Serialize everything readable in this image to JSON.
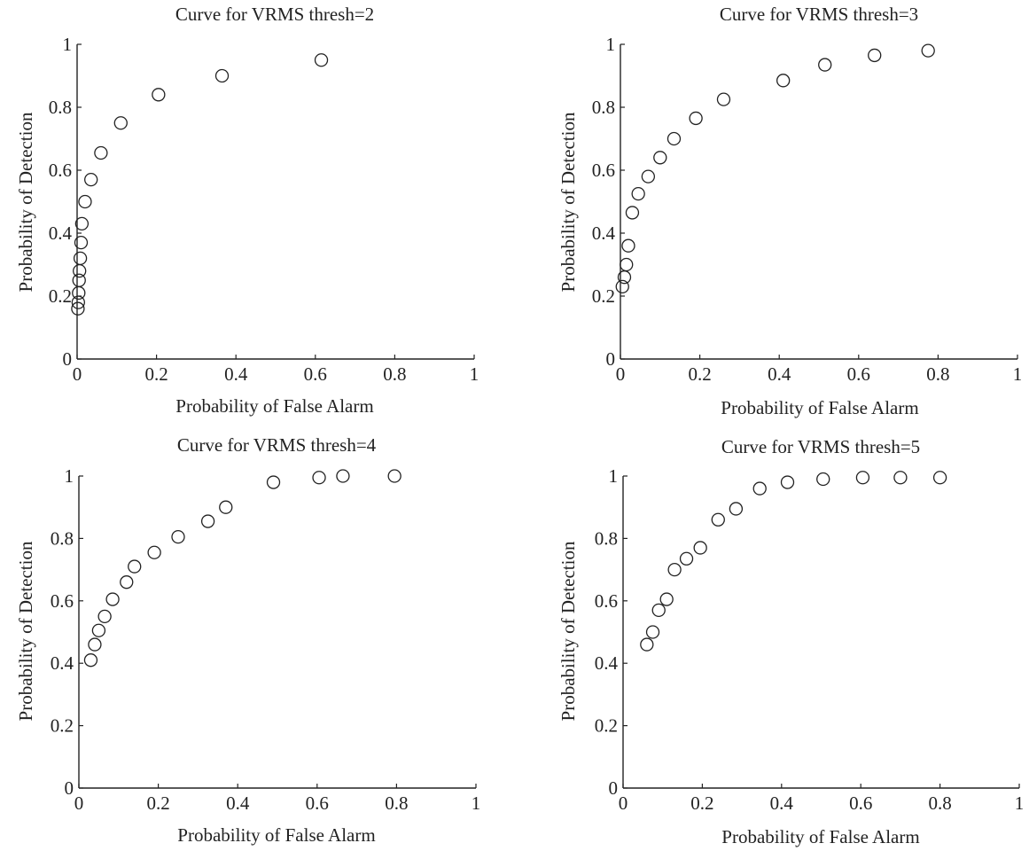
{
  "chart_data": [
    {
      "type": "scatter",
      "title": "Curve for VRMS thresh=2",
      "xlabel": "Probability of False Alarm",
      "ylabel": "Probability of Detection",
      "xlim": [
        0,
        1
      ],
      "ylim": [
        0,
        1
      ],
      "xticks": [
        "0",
        "0.2",
        "0.4",
        "0.6",
        "0.8",
        "1"
      ],
      "yticks": [
        "0",
        "0.2",
        "0.4",
        "0.6",
        "0.8",
        "1"
      ],
      "marker": "open-circle",
      "grid": false,
      "series": [
        {
          "x": [
            0.002,
            0.003,
            0.004,
            0.005,
            0.006,
            0.008,
            0.01,
            0.012,
            0.02,
            0.035,
            0.06,
            0.11,
            0.205,
            0.365,
            0.615
          ],
          "y": [
            0.16,
            0.18,
            0.21,
            0.25,
            0.28,
            0.32,
            0.37,
            0.43,
            0.5,
            0.57,
            0.655,
            0.75,
            0.84,
            0.9,
            0.95
          ]
        }
      ]
    },
    {
      "type": "scatter",
      "title": "Curve for VRMS thresh=3",
      "xlabel": "Probability of False Alarm",
      "ylabel": "Probability of Detection",
      "xlim": [
        0,
        1
      ],
      "ylim": [
        0,
        1
      ],
      "xticks": [
        "0",
        "0.2",
        "0.4",
        "0.6",
        "0.8",
        "1"
      ],
      "yticks": [
        "0",
        "0.2",
        "0.4",
        "0.6",
        "0.8",
        "1"
      ],
      "marker": "open-circle",
      "grid": false,
      "series": [
        {
          "x": [
            0.005,
            0.01,
            0.015,
            0.02,
            0.03,
            0.045,
            0.07,
            0.1,
            0.135,
            0.19,
            0.26,
            0.41,
            0.515,
            0.64,
            0.775
          ],
          "y": [
            0.23,
            0.26,
            0.3,
            0.36,
            0.465,
            0.525,
            0.58,
            0.64,
            0.7,
            0.765,
            0.825,
            0.885,
            0.935,
            0.965,
            0.98
          ]
        }
      ]
    },
    {
      "type": "scatter",
      "title": "Curve for VRMS thresh=4",
      "xlabel": "Probability of False Alarm",
      "ylabel": "Probability of Detection",
      "xlim": [
        0,
        1
      ],
      "ylim": [
        0,
        1
      ],
      "xticks": [
        "0",
        "0.2",
        "0.4",
        "0.6",
        "0.8",
        "1"
      ],
      "yticks": [
        "0",
        "0.2",
        "0.4",
        "0.6",
        "0.8",
        "1"
      ],
      "marker": "open-circle",
      "grid": false,
      "series": [
        {
          "x": [
            0.03,
            0.04,
            0.05,
            0.065,
            0.085,
            0.12,
            0.14,
            0.19,
            0.25,
            0.325,
            0.37,
            0.49,
            0.605,
            0.665,
            0.795
          ],
          "y": [
            0.41,
            0.46,
            0.505,
            0.55,
            0.605,
            0.66,
            0.71,
            0.755,
            0.805,
            0.855,
            0.9,
            0.98,
            0.995,
            1.0,
            1.0
          ]
        }
      ]
    },
    {
      "type": "scatter",
      "title": "Curve for VRMS thresh=5",
      "xlabel": "Probability of False Alarm",
      "ylabel": "Probability of Detection",
      "xlim": [
        0,
        1
      ],
      "ylim": [
        0,
        1
      ],
      "xticks": [
        "0",
        "0.2",
        "0.4",
        "0.6",
        "0.8",
        "1"
      ],
      "yticks": [
        "0",
        "0.2",
        "0.4",
        "0.6",
        "0.8",
        "1"
      ],
      "marker": "open-circle",
      "grid": false,
      "series": [
        {
          "x": [
            0.06,
            0.075,
            0.09,
            0.11,
            0.13,
            0.16,
            0.195,
            0.24,
            0.285,
            0.345,
            0.415,
            0.505,
            0.605,
            0.7,
            0.8
          ],
          "y": [
            0.46,
            0.5,
            0.57,
            0.605,
            0.7,
            0.735,
            0.77,
            0.86,
            0.895,
            0.96,
            0.98,
            0.99,
            0.995,
            0.995,
            0.995
          ]
        }
      ]
    }
  ]
}
